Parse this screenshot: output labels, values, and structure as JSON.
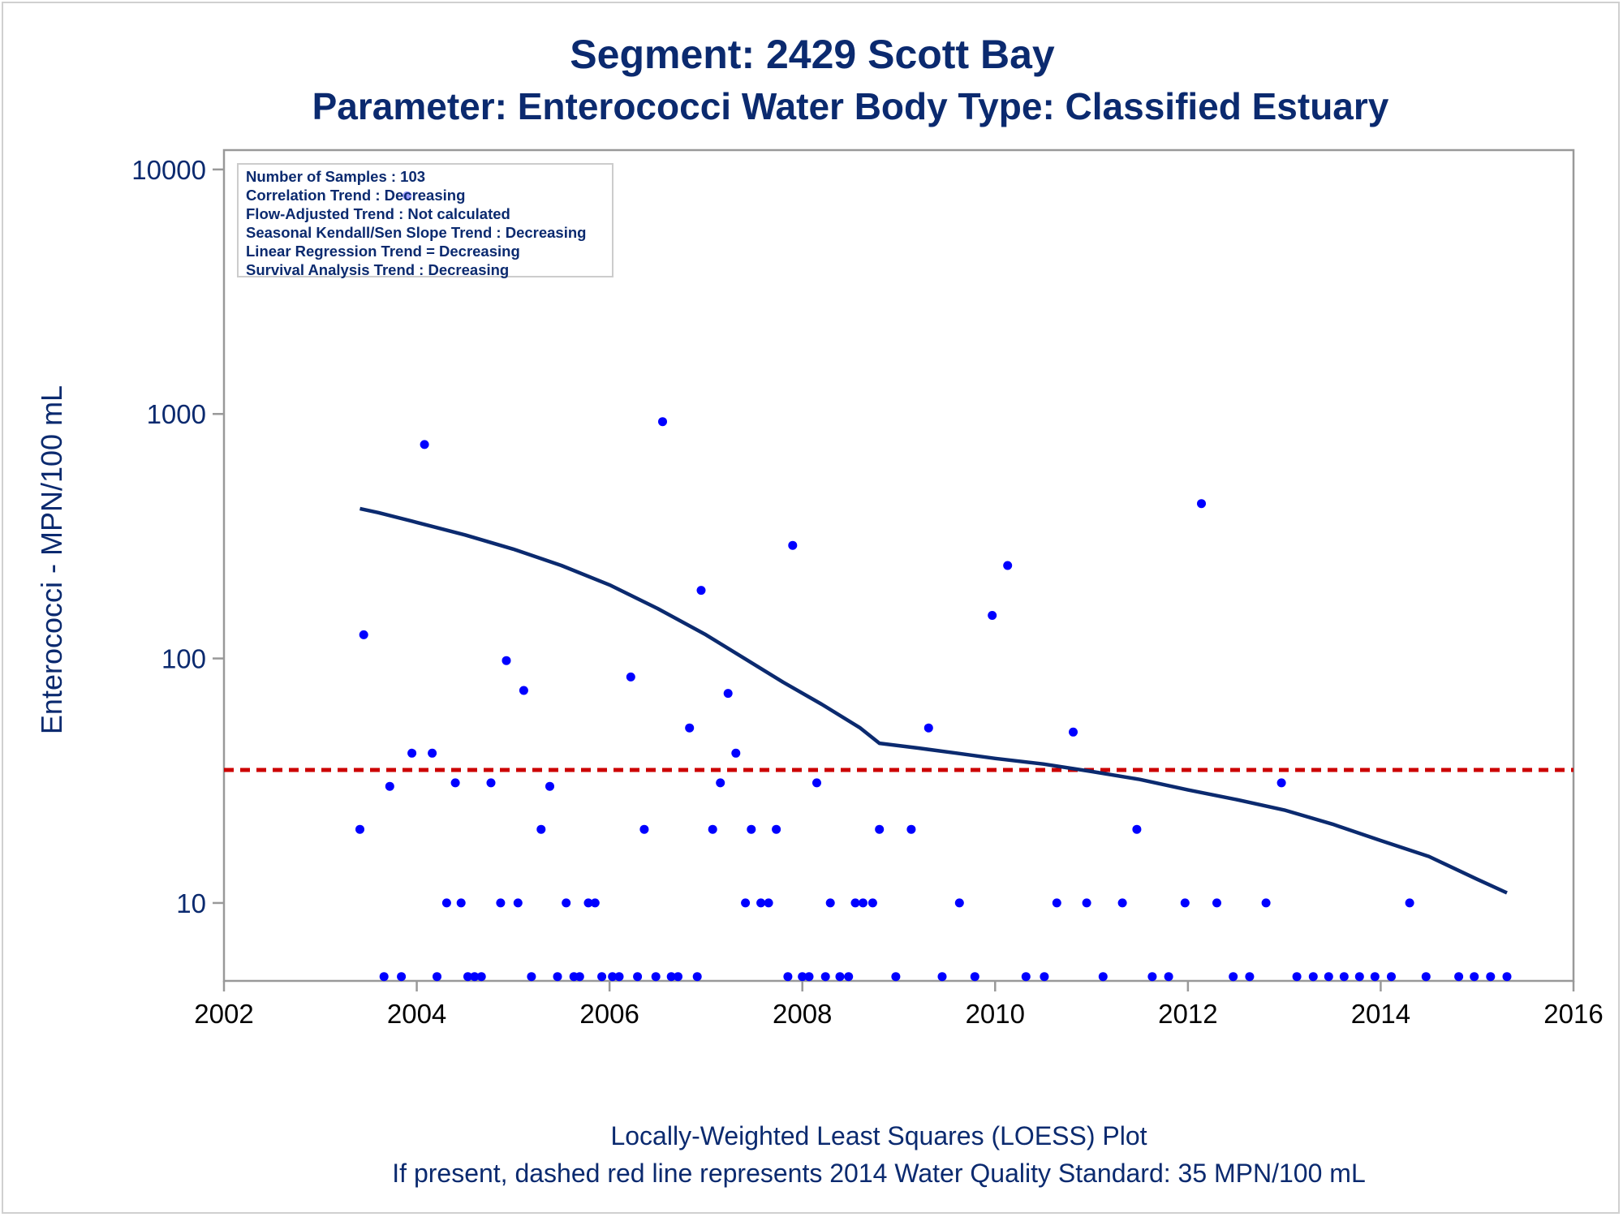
{
  "title": "Segment: 2429  Scott Bay",
  "subtitle": "Parameter: Enterococci   Water Body Type: Classified Estuary",
  "footnote_1": "Locally-Weighted Least Squares (LOESS) Plot",
  "footnote_2": "If present, dashed red line represents 2014 Water Quality Standard: 35 MPN/100 mL",
  "info_box": [
    "Number of Samples : 103",
    "Correlation Trend : Decreasing",
    "Flow-Adjusted Trend : Not calculated",
    "Seasonal Kendall/Sen Slope Trend : Decreasing",
    "Linear Regression Trend = Decreasing",
    "Survival Analysis Trend : Decreasing"
  ],
  "colors": {
    "text": "#0b2a6f",
    "points": "#0000ff",
    "loess": "#0b2a6f",
    "standard": "#cc0000",
    "axis": "#999999"
  },
  "chart_data": {
    "type": "scatter",
    "xlabel": "",
    "ylabel": "Enterococci - MPN/100 mL",
    "y_scale": "log",
    "xlim": [
      2002,
      2016
    ],
    "ylim": [
      4.8,
      12000
    ],
    "x_ticks": [
      2002,
      2004,
      2006,
      2008,
      2010,
      2012,
      2014,
      2016
    ],
    "y_ticks": [
      10,
      100,
      1000,
      10000
    ],
    "x_tick_labels": [
      "2002",
      "2004",
      "2006",
      "2008",
      "2010",
      "2012",
      "2014",
      "2016"
    ],
    "y_tick_labels": [
      "10",
      "100",
      "1000",
      "10000"
    ],
    "standard_line": 35,
    "points": [
      [
        2003.41,
        20
      ],
      [
        2003.45,
        125
      ],
      [
        2003.66,
        5
      ],
      [
        2003.72,
        30
      ],
      [
        2003.84,
        5
      ],
      [
        2003.9,
        7800
      ],
      [
        2003.95,
        41
      ],
      [
        2004.08,
        750
      ],
      [
        2004.16,
        41
      ],
      [
        2004.21,
        5
      ],
      [
        2004.31,
        10
      ],
      [
        2004.4,
        31
      ],
      [
        2004.46,
        10
      ],
      [
        2004.53,
        5
      ],
      [
        2004.6,
        5
      ],
      [
        2004.67,
        5
      ],
      [
        2004.77,
        31
      ],
      [
        2004.87,
        10
      ],
      [
        2004.93,
        98
      ],
      [
        2005.05,
        10
      ],
      [
        2005.11,
        74
      ],
      [
        2005.19,
        5
      ],
      [
        2005.29,
        20
      ],
      [
        2005.38,
        30
      ],
      [
        2005.46,
        5
      ],
      [
        2005.55,
        10
      ],
      [
        2005.63,
        5
      ],
      [
        2005.69,
        5
      ],
      [
        2005.78,
        10
      ],
      [
        2005.85,
        10
      ],
      [
        2005.92,
        5
      ],
      [
        2006.03,
        5
      ],
      [
        2006.1,
        5
      ],
      [
        2006.22,
        84
      ],
      [
        2006.29,
        5
      ],
      [
        2006.36,
        20
      ],
      [
        2006.48,
        5
      ],
      [
        2006.55,
        930
      ],
      [
        2006.64,
        5
      ],
      [
        2006.71,
        5
      ],
      [
        2006.83,
        52
      ],
      [
        2006.91,
        5
      ],
      [
        2006.95,
        190
      ],
      [
        2007.07,
        20
      ],
      [
        2007.15,
        31
      ],
      [
        2007.23,
        72
      ],
      [
        2007.31,
        41
      ],
      [
        2007.41,
        10
      ],
      [
        2007.47,
        20
      ],
      [
        2007.57,
        10
      ],
      [
        2007.65,
        10
      ],
      [
        2007.73,
        20
      ],
      [
        2007.85,
        5
      ],
      [
        2007.9,
        290
      ],
      [
        2008.0,
        5
      ],
      [
        2008.07,
        5
      ],
      [
        2008.15,
        31
      ],
      [
        2008.24,
        5
      ],
      [
        2008.29,
        10
      ],
      [
        2008.39,
        5
      ],
      [
        2008.48,
        5
      ],
      [
        2008.55,
        10
      ],
      [
        2008.63,
        10
      ],
      [
        2008.73,
        10
      ],
      [
        2008.8,
        20
      ],
      [
        2008.97,
        5
      ],
      [
        2009.13,
        20
      ],
      [
        2009.31,
        52
      ],
      [
        2009.45,
        5
      ],
      [
        2009.63,
        10
      ],
      [
        2009.79,
        5
      ],
      [
        2009.97,
        150
      ],
      [
        2010.13,
        240
      ],
      [
        2010.32,
        5
      ],
      [
        2010.51,
        5
      ],
      [
        2010.64,
        10
      ],
      [
        2010.81,
        50
      ],
      [
        2010.95,
        10
      ],
      [
        2011.12,
        5
      ],
      [
        2011.32,
        10
      ],
      [
        2011.47,
        20
      ],
      [
        2011.63,
        5
      ],
      [
        2011.8,
        5
      ],
      [
        2011.97,
        10
      ],
      [
        2012.14,
        430
      ],
      [
        2012.3,
        10
      ],
      [
        2012.47,
        5
      ],
      [
        2012.64,
        5
      ],
      [
        2012.81,
        10
      ],
      [
        2012.97,
        31
      ],
      [
        2013.13,
        5
      ],
      [
        2013.3,
        5
      ],
      [
        2013.46,
        5
      ],
      [
        2013.62,
        5
      ],
      [
        2013.78,
        5
      ],
      [
        2013.94,
        5
      ],
      [
        2014.11,
        5
      ],
      [
        2014.3,
        10
      ],
      [
        2014.47,
        5
      ],
      [
        2014.81,
        5
      ],
      [
        2014.97,
        5
      ],
      [
        2015.14,
        5
      ],
      [
        2015.31,
        5
      ]
    ],
    "loess": [
      [
        2003.41,
        410
      ],
      [
        2003.6,
        395
      ],
      [
        2004.0,
        360
      ],
      [
        2004.5,
        320
      ],
      [
        2005.0,
        280
      ],
      [
        2005.5,
        240
      ],
      [
        2006.0,
        200
      ],
      [
        2006.5,
        160
      ],
      [
        2007.0,
        125
      ],
      [
        2007.4,
        100
      ],
      [
        2007.8,
        80
      ],
      [
        2008.2,
        65
      ],
      [
        2008.6,
        52
      ],
      [
        2008.8,
        45
      ],
      [
        2009.2,
        43
      ],
      [
        2009.6,
        41
      ],
      [
        2010.0,
        39
      ],
      [
        2010.5,
        37
      ],
      [
        2011.0,
        34.5
      ],
      [
        2011.5,
        32
      ],
      [
        2012.0,
        29
      ],
      [
        2012.5,
        26.5
      ],
      [
        2013.0,
        24
      ],
      [
        2013.5,
        21
      ],
      [
        2014.0,
        18
      ],
      [
        2014.5,
        15.5
      ],
      [
        2015.0,
        12.5
      ],
      [
        2015.31,
        11
      ]
    ]
  }
}
